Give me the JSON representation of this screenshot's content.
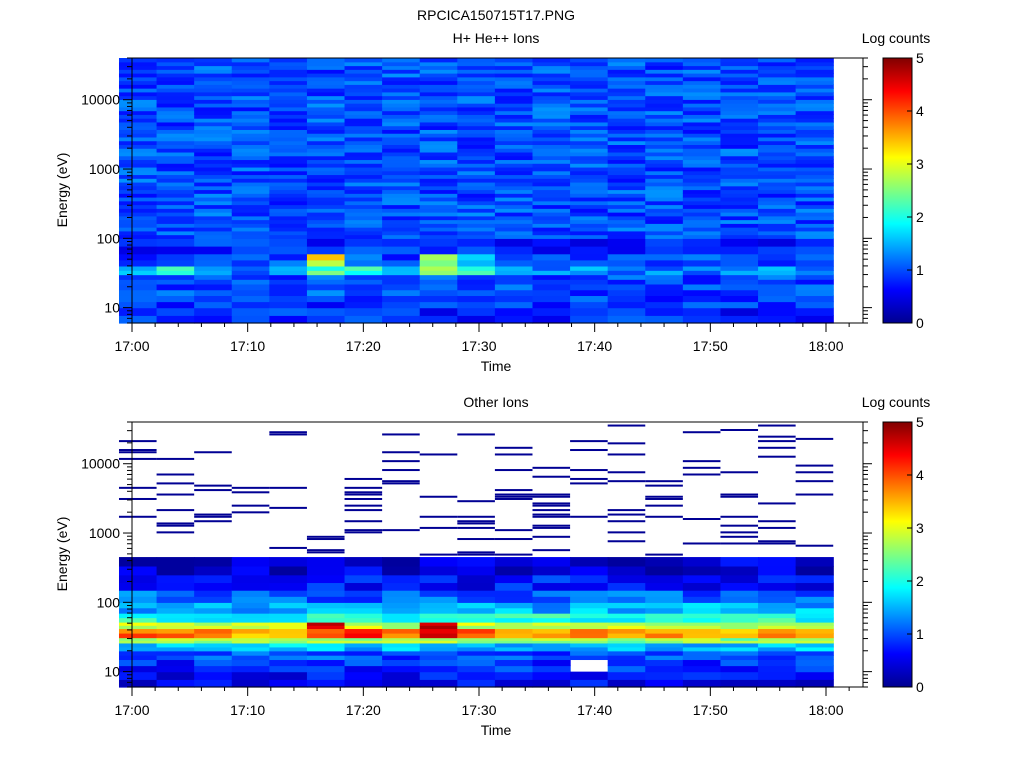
{
  "figure_title": "RPCICA150715T17.PNG",
  "chart_data": [
    {
      "type": "heatmap",
      "title": "H+ He++ Ions",
      "xlabel": "Time",
      "ylabel": "Energy (eV)",
      "colorbar_label": "Log counts",
      "colorbar_ticks": [
        "0",
        "1",
        "2",
        "3",
        "4",
        "5"
      ],
      "color_range": [
        0,
        5
      ],
      "x_ticks": [
        "17:00",
        "17:10",
        "17:20",
        "17:30",
        "17:40",
        "17:50",
        "18:00"
      ],
      "y_ticks": [
        "10",
        "100",
        "1000",
        "10000"
      ],
      "y_scale": "log",
      "ylim": [
        6,
        40000
      ],
      "colormap": "jet",
      "time_bins": [
        "17:00:30",
        "17:03:45",
        "17:07:00",
        "17:10:15",
        "17:13:30",
        "17:16:45",
        "17:20:00",
        "17:23:15",
        "17:26:30",
        "17:29:45",
        "17:33:00",
        "17:36:15",
        "17:39:30",
        "17:42:45",
        "17:46:00",
        "17:49:15",
        "17:52:30",
        "17:55:45",
        "17:59:00"
      ],
      "energy_bands": [
        {
          "range": [
            6,
            10
          ],
          "level": 0.8
        },
        {
          "range": [
            10,
            15
          ],
          "level": 0.9
        },
        {
          "range": [
            15,
            22
          ],
          "level": 1.0
        },
        {
          "range": [
            22,
            30
          ],
          "level": 1.0
        },
        {
          "range": [
            30,
            40
          ],
          "level": 1.3
        },
        {
          "range": [
            40,
            60
          ],
          "level": 1.0
        },
        {
          "range": [
            60,
            100
          ],
          "level": 0.8
        },
        {
          "range": [
            100,
            40000
          ],
          "level": 1.0
        }
      ],
      "hotspots": [
        {
          "time": "17:00:30",
          "energy": [
            30,
            40
          ],
          "level": 1.7
        },
        {
          "time": "17:03:45",
          "energy": [
            30,
            40
          ],
          "level": 1.9
        },
        {
          "time": "17:07:00",
          "energy": [
            30,
            40
          ],
          "level": 1.5
        },
        {
          "time": "17:16:45",
          "energy": [
            40,
            60
          ],
          "level": 3.1
        },
        {
          "time": "17:16:45",
          "energy": [
            30,
            40
          ],
          "level": 2.2
        },
        {
          "time": "17:20:00",
          "energy": [
            30,
            40
          ],
          "level": 2.0
        },
        {
          "time": "17:26:30",
          "energy": [
            40,
            60
          ],
          "level": 2.6
        },
        {
          "time": "17:26:30",
          "energy": [
            30,
            40
          ],
          "level": 2.5
        },
        {
          "time": "17:29:45",
          "energy": [
            40,
            60
          ],
          "level": 1.8
        },
        {
          "time": "17:29:45",
          "energy": [
            30,
            40
          ],
          "level": 2.1
        }
      ]
    },
    {
      "type": "heatmap",
      "title": "Other Ions",
      "xlabel": "Time",
      "ylabel": "Energy (eV)",
      "colorbar_label": "Log counts",
      "colorbar_ticks": [
        "0",
        "1",
        "2",
        "3",
        "4",
        "5"
      ],
      "color_range": [
        0,
        5
      ],
      "x_ticks": [
        "17:00",
        "17:10",
        "17:20",
        "17:30",
        "17:40",
        "17:50",
        "18:00"
      ],
      "y_ticks": [
        "10",
        "100",
        "1000",
        "10000"
      ],
      "y_scale": "log",
      "ylim": [
        6,
        40000
      ],
      "colormap": "jet",
      "time_bins": [
        "17:00:30",
        "17:03:45",
        "17:07:00",
        "17:10:15",
        "17:13:30",
        "17:16:45",
        "17:20:00",
        "17:23:15",
        "17:26:30",
        "17:29:45",
        "17:33:00",
        "17:36:15",
        "17:39:30",
        "17:42:45",
        "17:46:00",
        "17:49:15",
        "17:52:30",
        "17:55:45",
        "17:59:00"
      ],
      "energy_bands": [
        {
          "range": [
            6,
            10
          ],
          "level": 0.6
        },
        {
          "range": [
            10,
            15
          ],
          "level": 0.8
        },
        {
          "range": [
            15,
            20
          ],
          "level": 1.0
        },
        {
          "range": [
            20,
            26
          ],
          "level": 1.6
        },
        {
          "range": [
            26,
            31
          ],
          "level": 2.6
        },
        {
          "range": [
            31,
            42
          ],
          "level": 3.6
        },
        {
          "range": [
            42,
            52
          ],
          "level": 2.9
        },
        {
          "range": [
            52,
            70
          ],
          "level": 2.0
        },
        {
          "range": [
            70,
            100
          ],
          "level": 1.5
        },
        {
          "range": [
            100,
            150
          ],
          "level": 1.1
        },
        {
          "range": [
            150,
            250
          ],
          "level": 0.7
        },
        {
          "range": [
            250,
            450
          ],
          "level": 0.4
        }
      ],
      "hotspots": [
        {
          "time": "17:16:45",
          "energy": [
            42,
            52
          ],
          "level": 4.5
        },
        {
          "time": "17:16:45",
          "energy": [
            31,
            42
          ],
          "level": 4.0
        },
        {
          "time": "17:20:00",
          "energy": [
            31,
            42
          ],
          "level": 4.3
        },
        {
          "time": "17:26:30",
          "energy": [
            42,
            52
          ],
          "level": 4.6
        },
        {
          "time": "17:26:30",
          "energy": [
            31,
            42
          ],
          "level": 4.4
        },
        {
          "time": "17:29:45",
          "energy": [
            31,
            42
          ],
          "level": 4.1
        },
        {
          "time": "17:00:30",
          "energy": [
            31,
            42
          ],
          "level": 3.8
        },
        {
          "time": "17:03:45",
          "energy": [
            31,
            42
          ],
          "level": 3.9
        },
        {
          "time": "17:39:30",
          "energy": [
            10,
            15
          ],
          "level": null
        }
      ],
      "sparse_high_energy_counts_level": 0.1
    }
  ]
}
